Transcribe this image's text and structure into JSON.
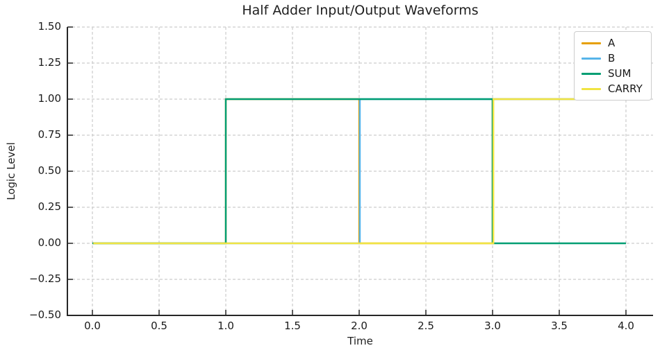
{
  "title": "Half Adder Input/Output Waveforms",
  "chart_data": {
    "type": "line",
    "step": "post",
    "title": "Half Adder Input/Output Waveforms",
    "xlabel": "Time",
    "ylabel": "Logic Level",
    "x": [
      0,
      1,
      2,
      3,
      4
    ],
    "series": [
      {
        "name": "A",
        "color": "#E69F00",
        "values": [
          0,
          1,
          0,
          1,
          1
        ]
      },
      {
        "name": "B",
        "color": "#56B4E9",
        "values": [
          0,
          0,
          1,
          1,
          1
        ]
      },
      {
        "name": "SUM",
        "color": "#009E73",
        "values": [
          0,
          1,
          1,
          0,
          0
        ]
      },
      {
        "name": "CARRY",
        "color": "#F0E442",
        "values": [
          0,
          0,
          0,
          1,
          1
        ]
      }
    ],
    "xlim": [
      -0.19,
      4.2
    ],
    "ylim": [
      -0.5,
      1.5
    ],
    "x_ticks": [
      {
        "value": 0.0,
        "label": "0.0"
      },
      {
        "value": 0.5,
        "label": "0.5"
      },
      {
        "value": 1.0,
        "label": "1.0"
      },
      {
        "value": 1.5,
        "label": "1.5"
      },
      {
        "value": 2.0,
        "label": "2.0"
      },
      {
        "value": 2.5,
        "label": "2.5"
      },
      {
        "value": 3.0,
        "label": "3.0"
      },
      {
        "value": 3.5,
        "label": "3.5"
      },
      {
        "value": 4.0,
        "label": "4.0"
      }
    ],
    "y_ticks": [
      {
        "value": 1.5,
        "label": "1.50"
      },
      {
        "value": 1.25,
        "label": "1.25"
      },
      {
        "value": 1.0,
        "label": "1.00"
      },
      {
        "value": 0.75,
        "label": "0.75"
      },
      {
        "value": 0.5,
        "label": "0.50"
      },
      {
        "value": 0.25,
        "label": "0.25"
      },
      {
        "value": 0.0,
        "label": "0.00"
      },
      {
        "value": -0.25,
        "label": "−0.25"
      },
      {
        "value": -0.5,
        "label": "−0.50"
      }
    ],
    "grid": true,
    "grid_style": "dashed",
    "legend_position": "upper right",
    "colors": {
      "grid": "#cccccc",
      "spine": "#262626",
      "text": "#1a1a1a"
    }
  }
}
